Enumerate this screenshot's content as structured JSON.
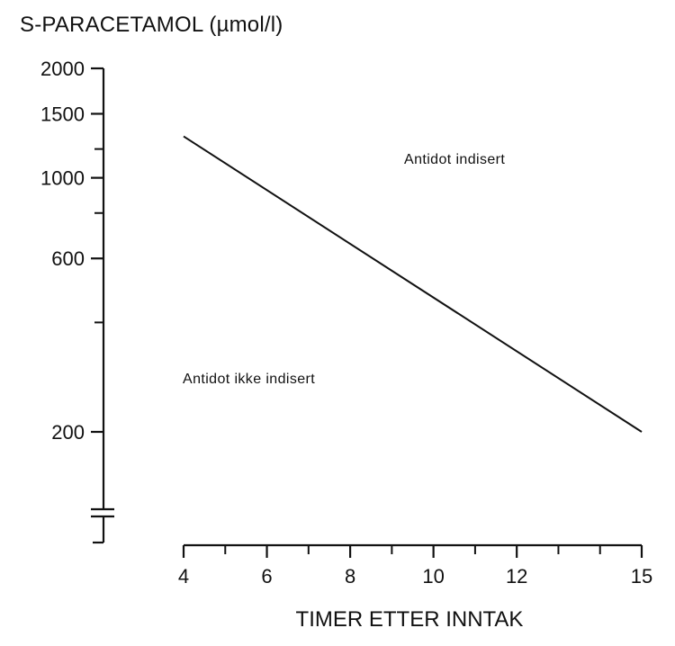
{
  "chart_data": {
    "type": "line",
    "title": "S-PARACETAMOL (µmol/l)",
    "xlabel": "TIMER ETTER INNTAK",
    "ylabel": "",
    "yscale": "log",
    "xlim": [
      4,
      15
    ],
    "ylim": [
      200,
      2000
    ],
    "x_major_ticks": [
      4,
      6,
      8,
      10,
      12,
      15
    ],
    "x_minor_ticks": [
      5,
      7,
      9,
      11,
      13,
      14
    ],
    "y_labeled_ticks": [
      2000,
      1500,
      1000,
      600,
      200
    ],
    "y_minor_ticks": [
      1200,
      800,
      400
    ],
    "axis_break": true,
    "grid": false,
    "series": [
      {
        "x": [
          4,
          15
        ],
        "y": [
          1300,
          200
        ]
      }
    ],
    "annotations": [
      "Antidot indisert",
      "Antidot ikke indisert"
    ]
  },
  "colors": {
    "ink": "#111111",
    "background": "#ffffff"
  }
}
